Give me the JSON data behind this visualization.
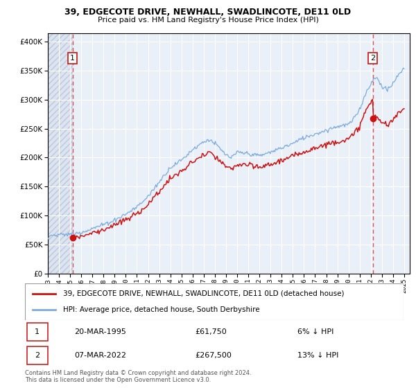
{
  "title1": "39, EDGECOTE DRIVE, NEWHALL, SWADLINCOTE, DE11 0LD",
  "title2": "Price paid vs. HM Land Registry's House Price Index (HPI)",
  "ytick_vals": [
    0,
    50000,
    100000,
    150000,
    200000,
    250000,
    300000,
    350000,
    400000
  ],
  "ylim": [
    0,
    415000
  ],
  "xlim_start": 1993.0,
  "xlim_end": 2025.5,
  "sale1_date": 1995.22,
  "sale1_price": 61750,
  "sale2_date": 2022.18,
  "sale2_price": 267500,
  "hpi_color": "#7aaadd",
  "price_color": "#cc1111",
  "dashed_color": "#dd3333",
  "background_plot": "#eaf0f8",
  "background_hatched": "#dde4f0",
  "grid_color": "#ffffff",
  "legend_label1": "39, EDGECOTE DRIVE, NEWHALL, SWADLINCOTE, DE11 0LD (detached house)",
  "legend_label2": "HPI: Average price, detached house, South Derbyshire",
  "annotation1_date": "20-MAR-1995",
  "annotation1_price": "£61,750",
  "annotation1_hpi": "6% ↓ HPI",
  "annotation2_date": "07-MAR-2022",
  "annotation2_price": "£267,500",
  "annotation2_hpi": "13% ↓ HPI",
  "footer": "Contains HM Land Registry data © Crown copyright and database right 2024.\nThis data is licensed under the Open Government Licence v3.0."
}
